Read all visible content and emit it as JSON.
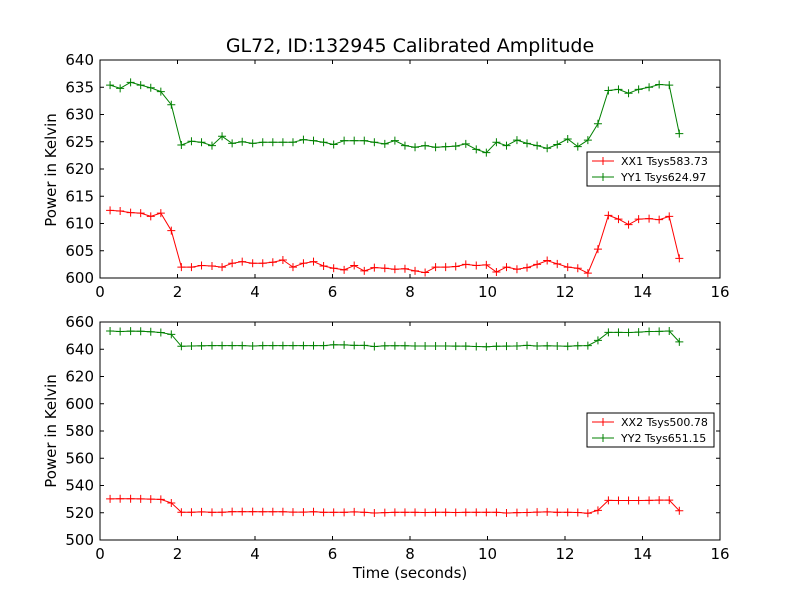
{
  "chart_data": [
    {
      "type": "line",
      "title": "GL72, ID:132945 Calibrated Amplitude",
      "xlabel": "",
      "ylabel": "Power in Kelvin",
      "xlim": [
        0,
        16
      ],
      "ylim": [
        600,
        640
      ],
      "xticks": [
        0,
        2,
        4,
        6,
        8,
        10,
        12,
        14,
        16
      ],
      "yticks": [
        600,
        605,
        610,
        615,
        620,
        625,
        630,
        635,
        640
      ],
      "grid": false,
      "legend_position": "right",
      "x": [
        0.26,
        0.52,
        0.79,
        1.05,
        1.31,
        1.57,
        1.84,
        2.1,
        2.36,
        2.62,
        2.89,
        3.15,
        3.41,
        3.67,
        3.94,
        4.2,
        4.46,
        4.72,
        4.98,
        5.25,
        5.51,
        5.77,
        6.03,
        6.3,
        6.56,
        6.82,
        7.08,
        7.35,
        7.61,
        7.87,
        8.13,
        8.39,
        8.66,
        8.92,
        9.18,
        9.44,
        9.71,
        9.97,
        10.23,
        10.49,
        10.76,
        11.02,
        11.28,
        11.54,
        11.8,
        12.07,
        12.33,
        12.59,
        12.85,
        13.12,
        13.38,
        13.64,
        13.9,
        14.17,
        14.43,
        14.69,
        14.95,
        15.22
      ],
      "series": [
        {
          "name": "XX1 Tsys583.73",
          "color": "#ff0000",
          "values": [
            612.4,
            612.3,
            612.0,
            611.9,
            611.3,
            611.9,
            608.7,
            602.0,
            602.0,
            602.3,
            602.2,
            602.0,
            602.7,
            603.0,
            602.7,
            602.7,
            602.9,
            603.3,
            602.0,
            602.7,
            603.0,
            602.2,
            601.8,
            601.5,
            602.3,
            601.3,
            601.9,
            601.8,
            601.6,
            601.7,
            601.3,
            601.0,
            602.0,
            602.0,
            602.1,
            602.5,
            602.3,
            602.4,
            601.1,
            602.0,
            601.6,
            601.9,
            602.5,
            603.2,
            602.6,
            602.0,
            601.8,
            600.9,
            605.3,
            611.5,
            610.8,
            609.8,
            610.8,
            610.9,
            610.7,
            611.3,
            603.6,
            null
          ]
        },
        {
          "name": "YY1 Tsys624.97",
          "color": "#008000",
          "values": [
            635.4,
            634.8,
            635.9,
            635.4,
            634.9,
            634.2,
            631.8,
            624.4,
            625.1,
            624.9,
            624.3,
            626.0,
            624.7,
            625.0,
            624.7,
            624.9,
            624.9,
            624.9,
            624.9,
            625.4,
            625.2,
            624.9,
            624.5,
            625.2,
            625.2,
            625.2,
            624.9,
            624.6,
            625.2,
            624.3,
            624.0,
            624.3,
            624.0,
            624.1,
            624.2,
            624.6,
            623.6,
            623.0,
            624.9,
            624.3,
            625.3,
            624.7,
            624.3,
            623.8,
            624.5,
            625.5,
            624.1,
            625.3,
            628.3,
            634.4,
            634.6,
            633.9,
            634.6,
            635.0,
            635.5,
            635.4,
            626.5,
            null
          ]
        }
      ]
    },
    {
      "type": "line",
      "title": "",
      "xlabel": "Time (seconds)",
      "ylabel": "Power in Kelvin",
      "xlim": [
        0,
        16
      ],
      "ylim": [
        500,
        660
      ],
      "xticks": [
        0,
        2,
        4,
        6,
        8,
        10,
        12,
        14,
        16
      ],
      "yticks": [
        500,
        520,
        540,
        560,
        580,
        600,
        620,
        640,
        660
      ],
      "grid": false,
      "legend_position": "right",
      "x": [
        0.26,
        0.52,
        0.79,
        1.05,
        1.31,
        1.57,
        1.84,
        2.1,
        2.36,
        2.62,
        2.89,
        3.15,
        3.41,
        3.67,
        3.94,
        4.2,
        4.46,
        4.72,
        4.98,
        5.25,
        5.51,
        5.77,
        6.03,
        6.3,
        6.56,
        6.82,
        7.08,
        7.35,
        7.61,
        7.87,
        8.13,
        8.39,
        8.66,
        8.92,
        9.18,
        9.44,
        9.71,
        9.97,
        10.23,
        10.49,
        10.76,
        11.02,
        11.28,
        11.54,
        11.8,
        12.07,
        12.33,
        12.59,
        12.85,
        13.12,
        13.38,
        13.64,
        13.9,
        14.17,
        14.43,
        14.69,
        14.95,
        15.22
      ],
      "series": [
        {
          "name": "XX2 Tsys500.78",
          "color": "#ff0000",
          "values": [
            530.2,
            530.3,
            530.3,
            530.2,
            530.0,
            529.8,
            527.2,
            520.4,
            520.4,
            520.6,
            520.3,
            520.4,
            520.8,
            520.8,
            520.8,
            520.7,
            520.7,
            520.7,
            520.5,
            520.5,
            520.7,
            520.3,
            520.3,
            520.3,
            520.6,
            520.3,
            519.8,
            520.1,
            520.3,
            520.3,
            520.3,
            520.2,
            520.3,
            520.3,
            520.2,
            520.3,
            520.3,
            520.3,
            520.3,
            519.8,
            520.1,
            520.2,
            520.5,
            520.6,
            520.3,
            520.3,
            520.2,
            519.6,
            521.7,
            529.1,
            529.0,
            529.0,
            529.0,
            529.1,
            529.3,
            529.3,
            521.5,
            null
          ]
        },
        {
          "name": "YY2 Tsys651.15",
          "color": "#008000",
          "values": [
            653.4,
            653.0,
            653.3,
            653.2,
            652.8,
            652.3,
            650.9,
            642.2,
            642.4,
            642.5,
            642.7,
            642.7,
            642.7,
            642.7,
            642.4,
            642.7,
            642.7,
            642.7,
            642.7,
            642.7,
            642.7,
            642.7,
            643.3,
            643.2,
            642.8,
            642.8,
            642.0,
            642.5,
            642.6,
            642.6,
            642.4,
            642.4,
            642.4,
            642.4,
            642.3,
            642.3,
            642.0,
            641.8,
            642.2,
            642.3,
            642.4,
            642.8,
            642.4,
            642.5,
            642.4,
            642.2,
            642.6,
            642.7,
            646.5,
            652.4,
            652.4,
            652.3,
            652.6,
            653.0,
            653.1,
            653.4,
            645.4,
            null
          ]
        }
      ]
    }
  ]
}
